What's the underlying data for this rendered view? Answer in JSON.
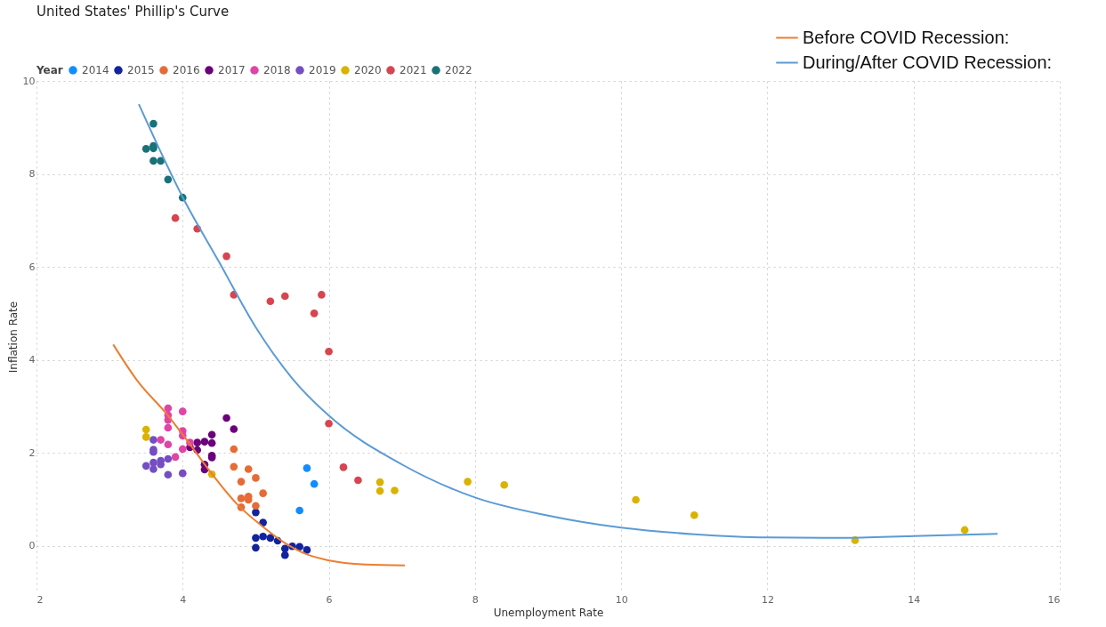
{
  "chart_data": {
    "type": "scatter",
    "title": "United States' Phillip's Curve",
    "xlabel": "Unemployment Rate",
    "ylabel": "Inflation Rate",
    "legend_title": "Year",
    "legend": "top",
    "grid": true,
    "marker": "circle",
    "line_style": "solid",
    "xlim": [
      2,
      16
    ],
    "xticks": [
      2,
      4,
      6,
      8,
      10,
      12,
      14,
      16
    ],
    "ylim": [
      -1,
      10
    ],
    "yticks": [
      0,
      2,
      4,
      6,
      8,
      10
    ],
    "series": [
      {
        "name": "2014",
        "color": "#118dff",
        "x": [
          5.7,
          5.8,
          5.6
        ],
        "values": [
          1.67,
          1.33,
          0.76
        ]
      },
      {
        "name": "2015",
        "color": "#12239e",
        "x": [
          5.0,
          5.1,
          5.0,
          5.1,
          5.2,
          5.3,
          5.0,
          5.4,
          5.4,
          5.5,
          5.6,
          5.7
        ],
        "values": [
          0.72,
          0.5,
          0.17,
          0.2,
          0.17,
          0.11,
          -0.04,
          -0.06,
          -0.2,
          -0.01,
          -0.02,
          -0.09
        ]
      },
      {
        "name": "2016",
        "color": "#e66c37",
        "x": [
          4.7,
          4.7,
          4.9,
          5.0,
          4.8,
          5.1,
          4.8,
          4.9,
          4.9,
          5.0,
          4.8
        ],
        "values": [
          2.08,
          1.7,
          1.65,
          1.46,
          1.38,
          1.13,
          1.02,
          1.06,
          0.99,
          0.86,
          0.83
        ]
      },
      {
        "name": "2017",
        "color": "#6b007b",
        "x": [
          4.6,
          4.7,
          4.4,
          4.4,
          4.3,
          4.2,
          4.2,
          4.1,
          4.4,
          4.4,
          4.3,
          4.3
        ],
        "values": [
          2.75,
          2.51,
          2.39,
          2.21,
          2.24,
          2.22,
          2.06,
          2.12,
          1.94,
          1.9,
          1.75,
          1.64
        ]
      },
      {
        "name": "2018",
        "color": "#e044a7",
        "x": [
          3.8,
          3.8,
          3.8,
          3.8,
          4.0,
          4.0,
          4.0,
          3.7,
          3.8,
          4.1,
          4.0,
          3.9
        ],
        "values": [
          2.96,
          2.81,
          2.71,
          2.54,
          2.89,
          2.47,
          2.37,
          2.28,
          2.18,
          2.22,
          2.08,
          1.91
        ]
      },
      {
        "name": "2019",
        "color": "#744ec2",
        "x": [
          3.6,
          3.6,
          3.6,
          3.5,
          3.6,
          3.6,
          3.7,
          3.7,
          3.8,
          3.8,
          4.0
        ],
        "values": [
          2.28,
          2.07,
          2.02,
          1.72,
          1.79,
          1.65,
          1.83,
          1.75,
          1.87,
          1.53,
          1.56
        ]
      },
      {
        "name": "2020",
        "color": "#d9b300",
        "x": [
          3.5,
          3.5,
          4.4,
          6.7,
          6.7,
          6.9,
          7.9,
          8.4,
          10.2,
          11.0,
          13.2,
          14.7
        ],
        "values": [
          2.5,
          2.34,
          1.54,
          1.37,
          1.18,
          1.19,
          1.38,
          1.31,
          0.99,
          0.66,
          0.12,
          0.34
        ]
      },
      {
        "name": "2021",
        "color": "#d64550",
        "x": [
          3.9,
          4.2,
          4.6,
          4.7,
          5.2,
          5.4,
          5.9,
          5.8,
          6.0,
          6.0,
          6.2,
          6.4
        ],
        "values": [
          7.05,
          6.82,
          6.23,
          5.4,
          5.26,
          5.37,
          5.4,
          5.0,
          4.18,
          2.63,
          1.69,
          1.41
        ]
      },
      {
        "name": "2022",
        "color": "#197278",
        "x": [
          3.6,
          3.5,
          3.6,
          3.6,
          3.6,
          3.7,
          3.8,
          4.0
        ],
        "values": [
          9.08,
          8.54,
          8.6,
          8.55,
          8.28,
          8.28,
          7.88,
          7.49
        ]
      },
      {
        "name": "Before COVID Recession:",
        "color": "#ed7d31",
        "type": "line",
        "marker": "none",
        "x": [
          3.05,
          3.38,
          3.79,
          4.06,
          4.38,
          4.73,
          5.09,
          5.4,
          5.71,
          5.99,
          6.5,
          7.04
        ],
        "values": [
          4.33,
          3.55,
          2.82,
          2.27,
          1.59,
          0.92,
          0.42,
          0.06,
          -0.19,
          -0.31,
          -0.4,
          -0.42
        ]
      },
      {
        "name": "During/After COVID Recession:",
        "color": "#5b9bd5",
        "type": "line",
        "marker": "none",
        "x": [
          3.4,
          4.0,
          4.5,
          5.0,
          5.5,
          6.0,
          7.0,
          8.0,
          9.0,
          10.0,
          11.0,
          12.0,
          13.0,
          14.0,
          15.15
        ],
        "values": [
          9.5,
          7.5,
          6.1,
          4.7,
          3.6,
          2.8,
          1.75,
          1.04,
          0.65,
          0.39,
          0.25,
          0.18,
          0.17,
          0.21,
          0.26
        ]
      }
    ]
  }
}
